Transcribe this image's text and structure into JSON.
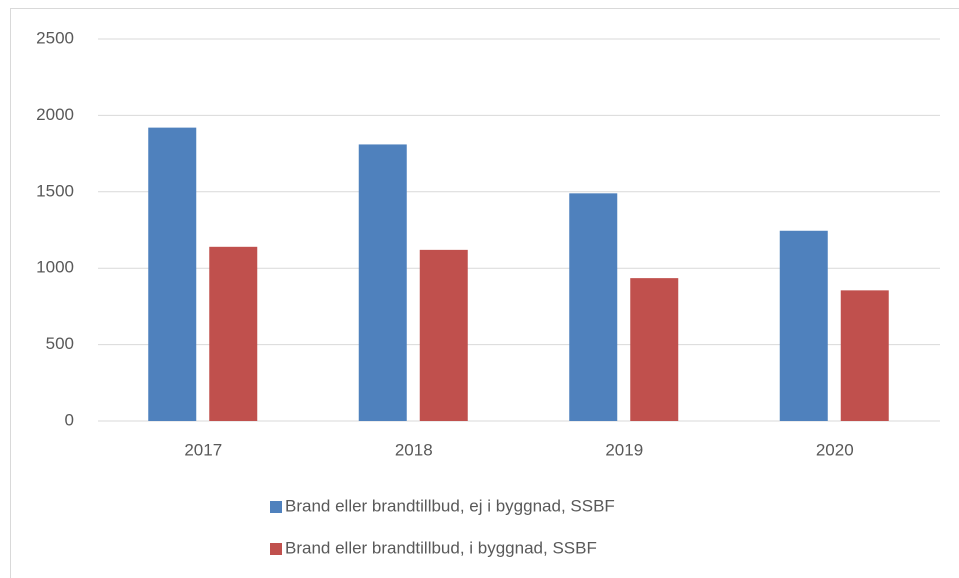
{
  "chart_data": {
    "type": "bar",
    "categories": [
      "2017",
      "2018",
      "2019",
      "2020"
    ],
    "series": [
      {
        "name": "Brand eller brandtillbud, ej i byggnad, SSBF",
        "color": "#4f81bd",
        "values": [
          1920,
          1810,
          1490,
          1245
        ]
      },
      {
        "name": "Brand eller brandtillbud, i byggnad, SSBF",
        "color": "#c0504d",
        "values": [
          1140,
          1120,
          935,
          855
        ]
      }
    ],
    "ylim": [
      0,
      2500
    ],
    "yticks": [
      0,
      500,
      1000,
      1500,
      2000,
      2500
    ],
    "grid": true,
    "legend": "bottom"
  }
}
